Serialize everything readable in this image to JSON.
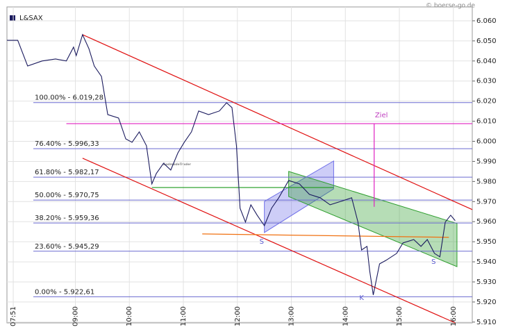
{
  "chart_data": {
    "type": "line",
    "credit": "© boerse-go.de",
    "watermark": "GodmodeTrader",
    "xlim": [
      "07:44",
      "16:21"
    ],
    "xticks": [
      "07:51",
      "09:00",
      "10:00",
      "11:00",
      "12:00",
      "13:00",
      "14:00",
      "15:00",
      "16:00"
    ],
    "ylim": [
      5909.6,
      6066.9
    ],
    "yticks": [
      {
        "value": 5910,
        "label": "5.910"
      },
      {
        "value": 5920,
        "label": "5.920"
      },
      {
        "value": 5930,
        "label": "5.930"
      },
      {
        "value": 5940,
        "label": "5.940"
      },
      {
        "value": 5950,
        "label": "5.950"
      },
      {
        "value": 5960,
        "label": "5.960"
      },
      {
        "value": 5970,
        "label": "5.970"
      },
      {
        "value": 5980,
        "label": "5.980"
      },
      {
        "value": 5990,
        "label": "5.990"
      },
      {
        "value": 6000,
        "label": "6.000"
      },
      {
        "value": 6010,
        "label": "6.010"
      },
      {
        "value": 6020,
        "label": "6.020"
      },
      {
        "value": 6030,
        "label": "6.030"
      },
      {
        "value": 6040,
        "label": "6.040"
      },
      {
        "value": 6050,
        "label": "6.050"
      },
      {
        "value": 6060,
        "label": "6.060"
      }
    ],
    "grid": true,
    "x": [
      "07:44",
      "07:56",
      "08:07",
      "08:23",
      "08:38",
      "08:50",
      "08:58",
      "09:01",
      "09:08",
      "09:15",
      "09:21",
      "09:29",
      "09:36",
      "09:48",
      "09:56",
      "10:03",
      "10:11",
      "10:19",
      "10:25",
      "10:30",
      "10:38",
      "10:46",
      "10:54",
      "11:01",
      "11:09",
      "11:17",
      "11:28",
      "11:40",
      "11:48",
      "11:54",
      "11:59",
      "12:03",
      "12:09",
      "12:15",
      "12:22",
      "12:30",
      "12:38",
      "12:46",
      "12:57",
      "13:09",
      "13:20",
      "13:32",
      "13:43",
      "13:55",
      "14:07",
      "14:14",
      "14:18",
      "14:24",
      "14:27",
      "14:31",
      "14:38",
      "14:45",
      "14:57",
      "15:04",
      "15:16",
      "15:24",
      "15:31",
      "15:39",
      "15:45",
      "15:51",
      "15:57",
      "16:02"
    ],
    "series": [
      {
        "name": "L&SAX",
        "color": "#1a1a5e",
        "values": [
          6050.3,
          6050.3,
          6037.5,
          6040,
          6041,
          6040,
          6046.9,
          6042.7,
          6053.1,
          6046.2,
          6037.5,
          6032.3,
          6013.3,
          6011.6,
          6001.2,
          5999.5,
          6004.7,
          5997.8,
          5978.8,
          5984,
          5989.1,
          5985.7,
          5994.3,
          5999.5,
          6004.7,
          6015.1,
          6013.3,
          6015.1,
          6019.2,
          6016.8,
          5997.8,
          5966.7,
          5959.8,
          5968.4,
          5963.2,
          5958,
          5966.7,
          5971.9,
          5980.5,
          5978.8,
          5973.6,
          5971.9,
          5968.4,
          5970.1,
          5971.9,
          5959.8,
          5945.9,
          5947.7,
          5935.6,
          5923.5,
          5939,
          5940.7,
          5944.2,
          5949.4,
          5951.1,
          5947.7,
          5951.1,
          5944.2,
          5942.5,
          5959.8,
          5963.2,
          5960.5
        ]
      }
    ],
    "levels": {
      "color": "#6a6ad0",
      "items": [
        {
          "value": 6019.28,
          "label": "100.00% - 6.019,28"
        },
        {
          "value": 5996.33,
          "label": "76.40% - 5.996,33"
        },
        {
          "value": 5982.17,
          "label": "61.80% - 5.982,17"
        },
        {
          "value": 5970.75,
          "label": "50.00% - 5.970,75"
        },
        {
          "value": 5959.36,
          "label": "38.20% - 5.959,36"
        },
        {
          "value": 5945.29,
          "label": "23.60% - 5.945,29"
        },
        {
          "value": 5922.61,
          "label": "0.00% - 5.922,61"
        }
      ]
    },
    "bands": [
      {
        "color": "#6f6fe8",
        "x": [
          "12:30",
          "13:47"
        ],
        "upper": [
          5970.1,
          5990.2
        ],
        "lower": [
          5954.6,
          5976.3
        ]
      },
      {
        "color": "#2e9e2e",
        "x": [
          "12:57",
          "16:04"
        ],
        "upper": [
          5985,
          5959.1
        ],
        "lower": [
          5972.5,
          5937.6
        ]
      }
    ],
    "lines": [
      {
        "color": "#e01010",
        "x": [
          "09:08",
          "16:21"
        ],
        "y": [
          6053.1,
          5966
        ]
      },
      {
        "color": "#e01010",
        "x": [
          "09:08",
          "16:02"
        ],
        "y": [
          5991.6,
          5909.6
        ]
      },
      {
        "color": "#e020c0",
        "x": [
          "08:50",
          "16:21"
        ],
        "y": [
          6008.8,
          6008.8
        ]
      },
      {
        "color": "#e020c0",
        "x": [
          "14:32",
          "14:32"
        ],
        "y": [
          6008.8,
          5967.4
        ]
      },
      {
        "color": "#1a9a1a",
        "x": [
          "10:25",
          "13:47"
        ],
        "y": [
          5977,
          5977
        ]
      },
      {
        "color": "#f07010",
        "x": [
          "11:21",
          "15:55"
        ],
        "y": [
          5953.9,
          5952.2
        ]
      }
    ],
    "annotations": [
      {
        "text": "Ziel",
        "color": "#c040c0",
        "x": "14:40",
        "y": 6013
      },
      {
        "text": "S",
        "color": "#5a5ad0",
        "x": "12:27",
        "y": 5950
      },
      {
        "text": "K",
        "color": "#5a5ad0",
        "x": "14:18",
        "y": 5922
      },
      {
        "text": "S",
        "color": "#5a5ad0",
        "x": "15:38",
        "y": 5940
      }
    ]
  }
}
